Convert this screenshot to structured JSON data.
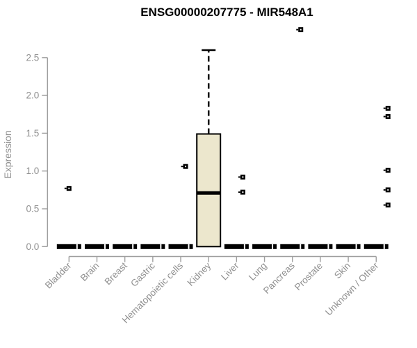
{
  "title": "ENSG00000207775 - MIR548A1",
  "chart_data": {
    "type": "boxplot",
    "title": "ENSG00000207775 - MIR548A1",
    "xlabel": "",
    "ylabel": "Expression",
    "ylim": [
      0,
      2.9
    ],
    "yticks": [
      0.0,
      0.5,
      1.0,
      1.5,
      2.0,
      2.5
    ],
    "grid": false,
    "legend": "none",
    "colors": {
      "box_fill": "#ECE7CD",
      "box_border": "#000000",
      "median": "#000000",
      "axis_line": "#9e9e9e",
      "tick_text": "#8f8f8f",
      "title_text": "#000000",
      "background": "#ffffff"
    },
    "categories": [
      "Bladder",
      "Brain",
      "Breast",
      "Gastric",
      "Hematopoietic cells",
      "Kidney",
      "Liver",
      "Lung",
      "Pancreas",
      "Prostate",
      "Skin",
      "Unknown / Other"
    ],
    "boxes": [
      {
        "category": "Bladder",
        "q1": 0,
        "median": 0,
        "q3": 0,
        "whisker_low": 0,
        "whisker_high": 0,
        "outliers": [
          {
            "value": 0.77,
            "dx": 0
          }
        ]
      },
      {
        "category": "Brain",
        "q1": 0,
        "median": 0,
        "q3": 0,
        "whisker_low": 0,
        "whisker_high": 0,
        "outliers": []
      },
      {
        "category": "Breast",
        "q1": 0,
        "median": 0,
        "q3": 0,
        "whisker_low": 0,
        "whisker_high": 0,
        "outliers": []
      },
      {
        "category": "Gastric",
        "q1": 0,
        "median": 0,
        "q3": 0,
        "whisker_low": 0,
        "whisker_high": 0,
        "outliers": []
      },
      {
        "category": "Hematopoietic cells",
        "q1": 0,
        "median": 0,
        "q3": 0,
        "whisker_low": 0,
        "whisker_high": 0,
        "outliers": [
          {
            "value": 1.06,
            "dx": 7
          }
        ]
      },
      {
        "category": "Kidney",
        "q1": 0,
        "median": 0.71,
        "q3": 1.49,
        "whisker_low": 0,
        "whisker_high": 2.6,
        "outliers": []
      },
      {
        "category": "Liver",
        "q1": 0,
        "median": 0,
        "q3": 0,
        "whisker_low": 0,
        "whisker_high": 0,
        "outliers": [
          {
            "value": 0.92,
            "dx": 9
          },
          {
            "value": 0.72,
            "dx": 9
          }
        ]
      },
      {
        "category": "Lung",
        "q1": 0,
        "median": 0,
        "q3": 0,
        "whisker_low": 0,
        "whisker_high": 0,
        "outliers": []
      },
      {
        "category": "Pancreas",
        "q1": 0,
        "median": 0,
        "q3": 0,
        "whisker_low": 0,
        "whisker_high": 0,
        "outliers": [
          {
            "value": 2.87,
            "dx": 12
          }
        ]
      },
      {
        "category": "Prostate",
        "q1": 0,
        "median": 0,
        "q3": 0,
        "whisker_low": 0,
        "whisker_high": 0,
        "outliers": []
      },
      {
        "category": "Skin",
        "q1": 0,
        "median": 0,
        "q3": 0,
        "whisker_low": 0,
        "whisker_high": 0,
        "outliers": []
      },
      {
        "category": "Unknown / Other",
        "q1": 0,
        "median": 0,
        "q3": 0,
        "whisker_low": 0,
        "whisker_high": 0,
        "outliers": [
          {
            "value": 1.83,
            "dx": 17
          },
          {
            "value": 1.72,
            "dx": 17
          },
          {
            "value": 1.01,
            "dx": 17
          },
          {
            "value": 0.75,
            "dx": 17
          },
          {
            "value": 0.55,
            "dx": 17
          }
        ]
      }
    ]
  }
}
